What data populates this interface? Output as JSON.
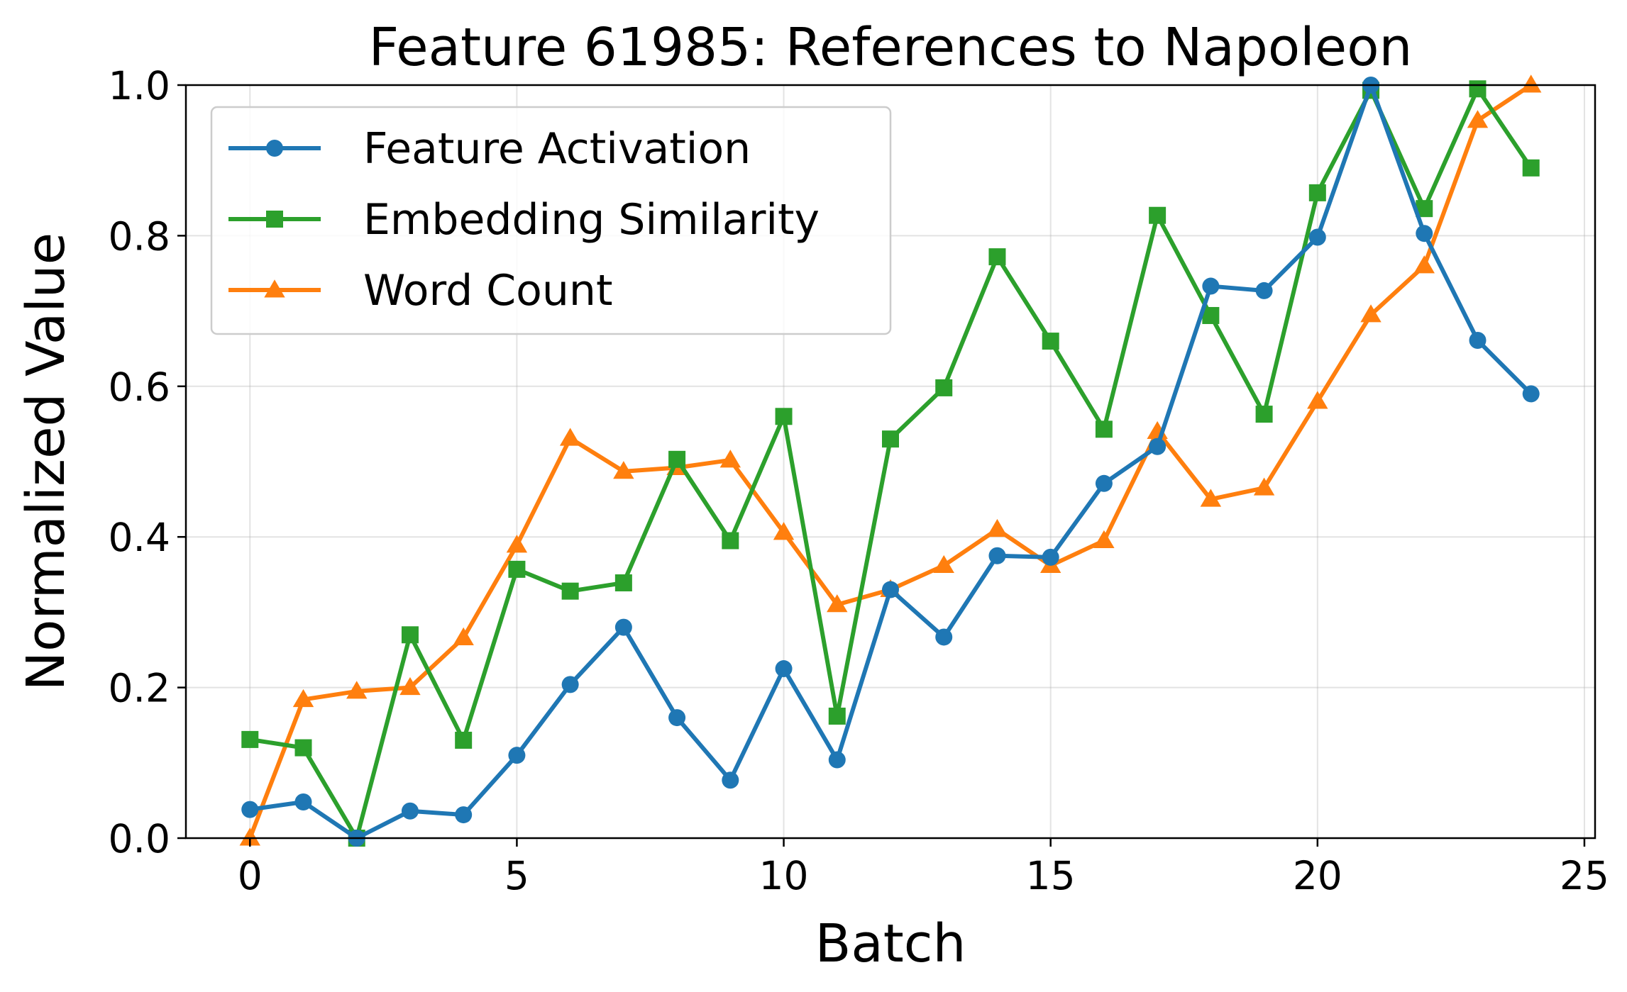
{
  "chart_data": {
    "type": "line",
    "title": "Feature 61985: References to Napoleon",
    "xlabel": "Batch",
    "ylabel": "Normalized Value",
    "xlim": [
      -1.2,
      25.2
    ],
    "ylim": [
      0.0,
      1.0
    ],
    "xticks": [
      "0",
      "5",
      "10",
      "15",
      "20",
      "25"
    ],
    "yticks": [
      "0.0",
      "0.2",
      "0.4",
      "0.6",
      "0.8",
      "1.0"
    ],
    "grid": true,
    "legend_position": "top-left",
    "x": [
      0,
      1,
      2,
      3,
      4,
      5,
      6,
      7,
      8,
      9,
      10,
      11,
      12,
      13,
      14,
      15,
      16,
      17,
      18,
      19,
      20,
      21,
      22,
      23,
      24
    ],
    "series": [
      {
        "name": "Feature Activation",
        "color": "#1f77b4",
        "marker": "circle",
        "values": [
          0.038,
          0.048,
          0.0,
          0.036,
          0.031,
          0.11,
          0.204,
          0.28,
          0.16,
          0.077,
          0.225,
          0.104,
          0.33,
          0.267,
          0.375,
          0.373,
          0.471,
          0.52,
          0.733,
          0.727,
          0.798,
          1.0,
          0.803,
          0.661,
          0.59
        ]
      },
      {
        "name": "Embedding Similarity",
        "color": "#2ca02c",
        "marker": "square",
        "values": [
          0.131,
          0.12,
          0.0,
          0.27,
          0.13,
          0.357,
          0.328,
          0.339,
          0.503,
          0.395,
          0.56,
          0.162,
          0.53,
          0.598,
          0.772,
          0.66,
          0.543,
          0.827,
          0.694,
          0.563,
          0.857,
          0.993,
          0.836,
          0.995,
          0.89
        ]
      },
      {
        "name": "Word Count",
        "color": "#ff7f0e",
        "marker": "triangle",
        "values": [
          0.0,
          0.184,
          0.195,
          0.2,
          0.266,
          0.389,
          0.531,
          0.487,
          0.492,
          0.502,
          0.406,
          0.31,
          0.33,
          0.362,
          0.41,
          0.362,
          0.395,
          0.54,
          0.45,
          0.465,
          0.58,
          0.695,
          0.76,
          0.953,
          1.0
        ]
      }
    ]
  }
}
